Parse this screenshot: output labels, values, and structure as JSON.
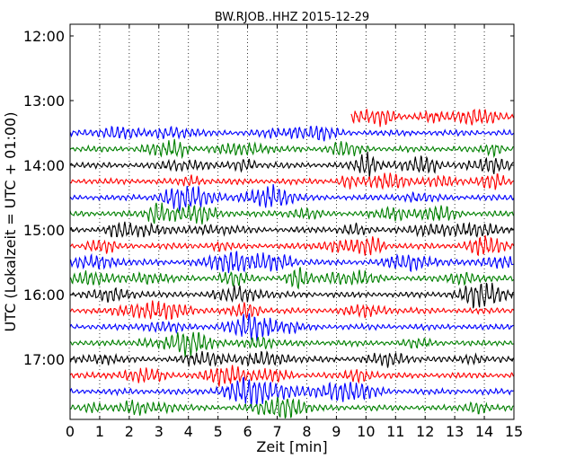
{
  "chart_data": {
    "type": "line",
    "title": "BW.RJOB..HHZ 2015-12-29",
    "xlabel": "Zeit  [min]",
    "ylabel": "UTC (Lokalzeit = UTC + 01:00)",
    "xlim": [
      0,
      15
    ],
    "x_ticks": [
      0,
      1,
      2,
      3,
      4,
      5,
      6,
      7,
      8,
      9,
      10,
      11,
      12,
      13,
      14,
      15
    ],
    "y_ticks": [
      "12:00",
      "13:00",
      "14:00",
      "15:00",
      "16:00",
      "17:00"
    ],
    "grid": "vertical-dotted",
    "row_interval_minutes": 15,
    "row_colors": [
      "#ff0000",
      "#0000ff",
      "#008000",
      "#000000"
    ],
    "series": [
      {
        "start": "13:15",
        "x_start": 9.5,
        "x_end": 15,
        "color": "#ff0000"
      },
      {
        "start": "13:30",
        "x_start": 0,
        "x_end": 15,
        "color": "#0000ff"
      },
      {
        "start": "13:45",
        "x_start": 0,
        "x_end": 15,
        "color": "#008000"
      },
      {
        "start": "14:00",
        "x_start": 0,
        "x_end": 15,
        "color": "#000000"
      },
      {
        "start": "14:15",
        "x_start": 0,
        "x_end": 15,
        "color": "#ff0000"
      },
      {
        "start": "14:30",
        "x_start": 0,
        "x_end": 15,
        "color": "#0000ff"
      },
      {
        "start": "14:45",
        "x_start": 0,
        "x_end": 15,
        "color": "#008000"
      },
      {
        "start": "15:00",
        "x_start": 0,
        "x_end": 15,
        "color": "#000000"
      },
      {
        "start": "15:15",
        "x_start": 0,
        "x_end": 15,
        "color": "#ff0000"
      },
      {
        "start": "15:30",
        "x_start": 0,
        "x_end": 15,
        "color": "#0000ff"
      },
      {
        "start": "15:45",
        "x_start": 0,
        "x_end": 15,
        "color": "#008000"
      },
      {
        "start": "16:00",
        "x_start": 0,
        "x_end": 15,
        "color": "#000000"
      },
      {
        "start": "16:15",
        "x_start": 0,
        "x_end": 15,
        "color": "#ff0000"
      },
      {
        "start": "16:30",
        "x_start": 0,
        "x_end": 15,
        "color": "#0000ff"
      },
      {
        "start": "16:45",
        "x_start": 0,
        "x_end": 15,
        "color": "#008000"
      },
      {
        "start": "17:00",
        "x_start": 0,
        "x_end": 15,
        "color": "#000000"
      },
      {
        "start": "17:15",
        "x_start": 0,
        "x_end": 15,
        "color": "#ff0000"
      },
      {
        "start": "17:30",
        "x_start": 0,
        "x_end": 15,
        "color": "#0000ff"
      },
      {
        "start": "17:45",
        "x_start": 0,
        "x_end": 15,
        "color": "#008000"
      }
    ]
  }
}
